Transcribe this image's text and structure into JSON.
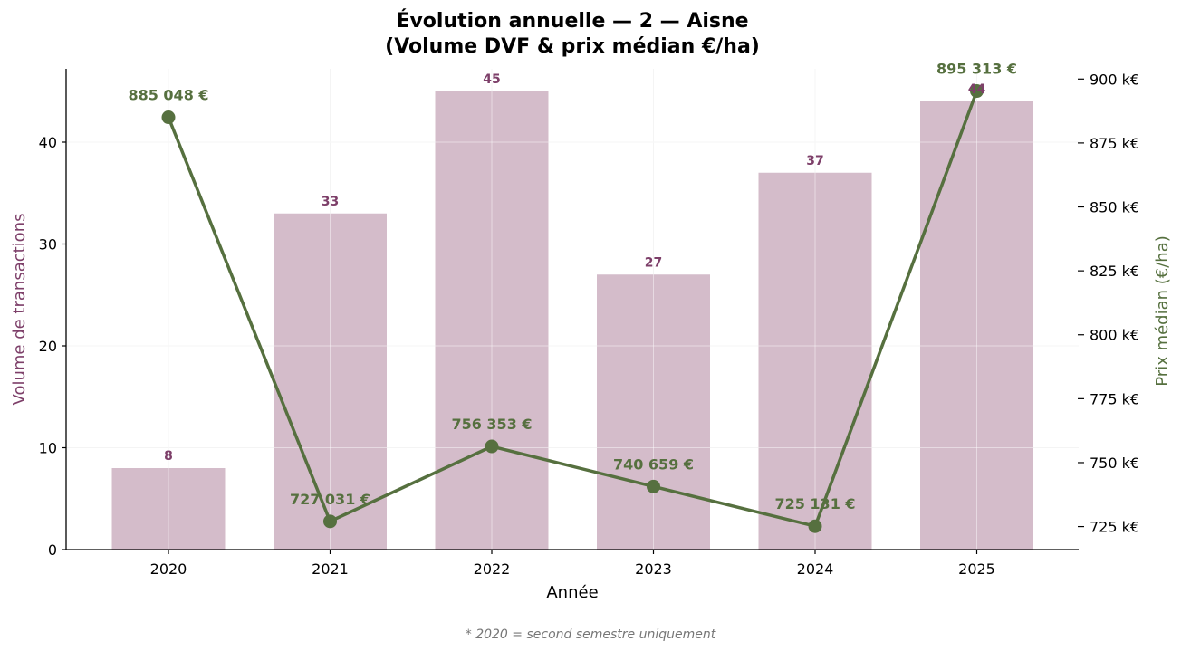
{
  "chart_data": {
    "type": "bar",
    "title_line1": "Évolution annuelle — 2 — Aisne",
    "title_line2": "(Volume DVF & prix médian €/ha)",
    "xlabel": "Année",
    "ylabel": "Volume de transactions",
    "ylabel_right": "Prix médian (€/ha)",
    "categories": [
      "2020",
      "2021",
      "2022",
      "2023",
      "2024",
      "2025"
    ],
    "ylim": [
      0,
      47.2
    ],
    "y_ticks": [
      0,
      10,
      20,
      30,
      40
    ],
    "y_tick_labels": [
      "0",
      "10",
      "20",
      "30",
      "40"
    ],
    "ylim_right": [
      716000,
      904000
    ],
    "y2_ticks": [
      725000,
      750000,
      775000,
      800000,
      825000,
      850000,
      875000,
      900000
    ],
    "y2_tick_labels": [
      "725 k€",
      "750 k€",
      "775 k€",
      "800 k€",
      "825 k€",
      "850 k€",
      "875 k€",
      "900 k€"
    ],
    "grid": true,
    "series": [
      {
        "kind": "bar",
        "axis": "left",
        "values": [
          8,
          33,
          45,
          27,
          37,
          44
        ],
        "labels": [
          "8",
          "33",
          "45",
          "27",
          "37",
          "44"
        ]
      },
      {
        "kind": "line",
        "axis": "right",
        "values": [
          885048,
          727031,
          756353,
          740659,
          725131,
          895313
        ],
        "labels": [
          "885 048 €",
          "727 031 €",
          "756 353 €",
          "740 659 €",
          "725 131 €",
          "895 313 €"
        ]
      }
    ],
    "footnote": "* 2020 = second semestre uniquement"
  },
  "colors": {
    "bar_fill": "#d4bcca",
    "bar_label": "#7d3f69",
    "line": "#56703f",
    "grid": "#ececec",
    "axis": "#000000",
    "footnote": "#777777"
  }
}
